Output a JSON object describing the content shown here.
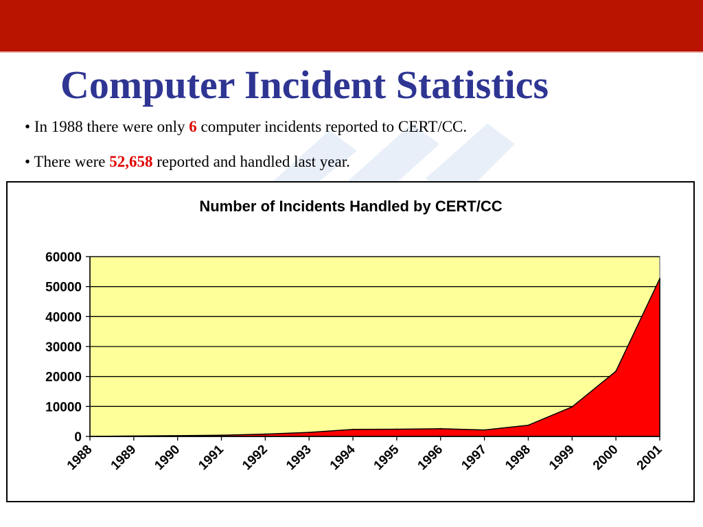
{
  "slide": {
    "title": "Computer Incident Statistics",
    "bullets": [
      {
        "bullet": "•",
        "before": "In 1988 there were only",
        "highlight": "6",
        "after": "computer incidents reported to CERT/CC."
      },
      {
        "bullet": "•",
        "before": "There were",
        "highlight": "52,658",
        "after": "reported and handled last year."
      }
    ]
  },
  "colors": {
    "top_bar": "#b81400",
    "title": "#2e3592",
    "highlight": "#e00000",
    "plot_background": "#ffff99",
    "area_fill": "#ff0000"
  },
  "chart_data": {
    "type": "area",
    "title": "Number of Incidents Handled by CERT/CC",
    "xlabel": "",
    "ylabel": "",
    "categories": [
      "1988",
      "1989",
      "1990",
      "1991",
      "1992",
      "1993",
      "1994",
      "1995",
      "1996",
      "1997",
      "1998",
      "1999",
      "2000",
      "2001"
    ],
    "values": [
      6,
      132,
      252,
      406,
      773,
      1334,
      2340,
      2412,
      2573,
      2134,
      3734,
      9859,
      21756,
      52658
    ],
    "ylim": [
      0,
      60000
    ],
    "yticks": [
      "0",
      "10000",
      "20000",
      "30000",
      "40000",
      "50000",
      "60000"
    ],
    "grid": true,
    "legend": "none"
  }
}
